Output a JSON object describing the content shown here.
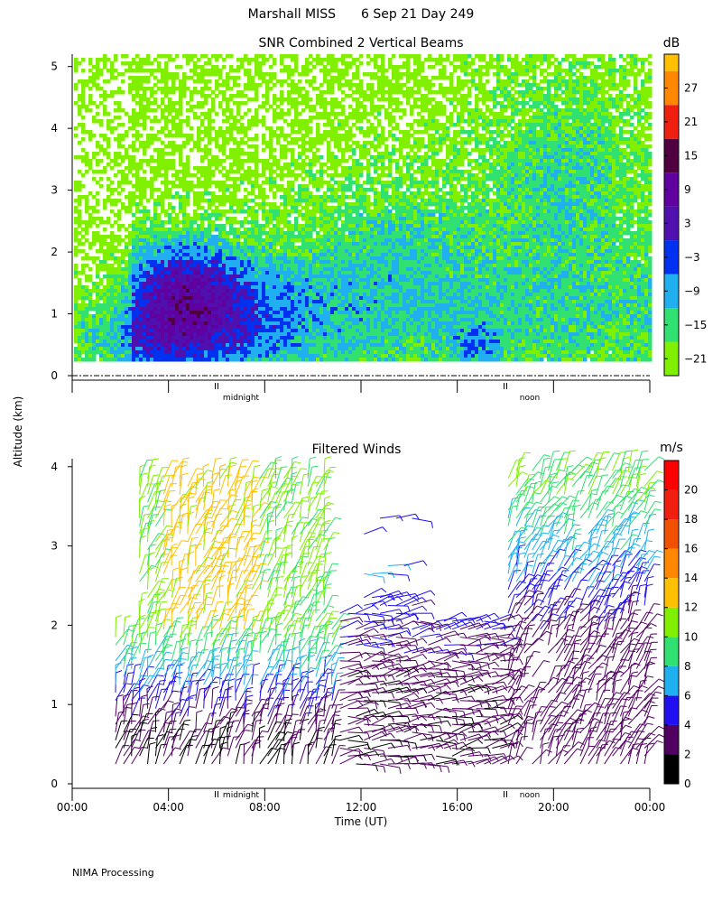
{
  "header": {
    "station": "Marshall MISS",
    "date": "6 Sep 21 Day 249"
  },
  "y_label": "Altitude (km)",
  "footer": "NIMA Processing",
  "chart_data": [
    {
      "type": "heatmap",
      "title": "SNR Combined 2 Vertical Beams",
      "ylabel": "Altitude (km)",
      "ylim": [
        0,
        5.2
      ],
      "y_ticks": [
        "0",
        "1",
        "2",
        "3",
        "4",
        "5"
      ],
      "markers": [
        "midnight",
        "noon"
      ],
      "colorbar": {
        "unit": "dB",
        "ticks": [
          "27",
          "21",
          "15",
          "9",
          "3",
          "−3",
          "−9",
          "−15",
          "−21"
        ],
        "bins": [
          {
            "from": -24,
            "to": -18,
            "color": "#80f000"
          },
          {
            "from": -18,
            "to": -12,
            "color": "#30e070"
          },
          {
            "from": -12,
            "to": -6,
            "color": "#20b0f0"
          },
          {
            "from": -6,
            "to": 0,
            "color": "#0030f0"
          },
          {
            "from": 0,
            "to": 6,
            "color": "#5010b0"
          },
          {
            "from": 6,
            "to": 12,
            "color": "#6000a0"
          },
          {
            "from": 12,
            "to": 18,
            "color": "#500040"
          },
          {
            "from": 18,
            "to": 24,
            "color": "#f02010"
          },
          {
            "from": 24,
            "to": 30,
            "color": "#ff8800"
          },
          {
            "from": 30,
            "to": 33,
            "color": "#ffc000"
          }
        ]
      }
    },
    {
      "type": "scatter",
      "title": "Filtered Winds",
      "xlabel": "Time (UT)",
      "ylim": [
        0,
        4.1
      ],
      "xlim": [
        "00:00",
        "24:00"
      ],
      "x_ticks": [
        "00:00",
        "04:00",
        "08:00",
        "12:00",
        "16:00",
        "20:00",
        "00:00"
      ],
      "y_ticks": [
        "0",
        "1",
        "2",
        "3",
        "4"
      ],
      "markers": [
        "midnight",
        "noon"
      ],
      "colorbar": {
        "unit": "m/s",
        "ticks": [
          "20",
          "18",
          "16",
          "14",
          "12",
          "10",
          "8",
          "6",
          "4",
          "2",
          "0"
        ],
        "bins": [
          {
            "from": 0,
            "to": 2,
            "color": "#000000"
          },
          {
            "from": 2,
            "to": 4,
            "color": "#500060"
          },
          {
            "from": 4,
            "to": 6,
            "color": "#2010f0"
          },
          {
            "from": 6,
            "to": 8,
            "color": "#20b0f0"
          },
          {
            "from": 8,
            "to": 10,
            "color": "#30e070"
          },
          {
            "from": 10,
            "to": 12,
            "color": "#80f000"
          },
          {
            "from": 12,
            "to": 14,
            "color": "#ffc000"
          },
          {
            "from": 14,
            "to": 16,
            "color": "#ff8800"
          },
          {
            "from": 16,
            "to": 18,
            "color": "#f05000"
          },
          {
            "from": 18,
            "to": 20,
            "color": "#f02010"
          },
          {
            "from": 20,
            "to": 22,
            "color": "#ff0000"
          }
        ]
      }
    }
  ]
}
